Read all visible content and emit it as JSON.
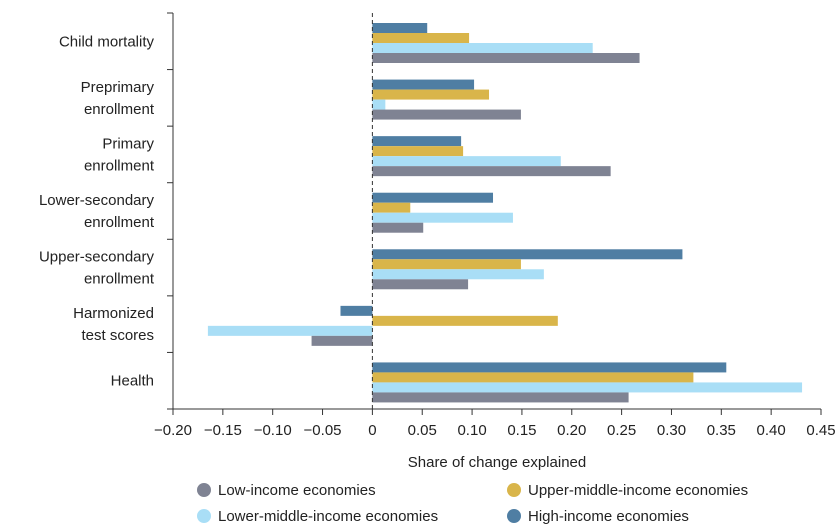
{
  "chart_data": {
    "type": "bar",
    "orientation": "horizontal",
    "categories": [
      [
        "Child mortality"
      ],
      [
        "Preprimary",
        "enrollment"
      ],
      [
        "Primary",
        "enrollment"
      ],
      [
        "Lower-secondary",
        "enrollment"
      ],
      [
        "Upper-secondary",
        "enrollment"
      ],
      [
        "Harmonized",
        "test scores"
      ],
      [
        "Health"
      ]
    ],
    "series": [
      {
        "name": "High-income economies",
        "color": "#4f7ea3",
        "values": [
          0.055,
          0.102,
          0.089,
          0.121,
          0.311,
          -0.032,
          0.355
        ]
      },
      {
        "name": "Upper-middle-income economies",
        "color": "#d9b54a",
        "values": [
          0.097,
          0.117,
          0.091,
          0.038,
          0.149,
          0.186,
          0.322
        ]
      },
      {
        "name": "Lower-middle-income economies",
        "color": "#a9def6",
        "values": [
          0.221,
          0.013,
          0.189,
          0.141,
          0.172,
          -0.165,
          0.431
        ]
      },
      {
        "name": "Low-income economies",
        "color": "#7f8393",
        "values": [
          0.268,
          0.149,
          0.239,
          0.051,
          0.096,
          -0.061,
          0.257
        ]
      }
    ],
    "xlim": [
      -0.2,
      0.45
    ],
    "xticks": [
      "−0.20",
      "−0.15",
      "−0.10",
      "−0.05",
      "0",
      "0.05",
      "0.10",
      "0.15",
      "0.20",
      "0.25",
      "0.30",
      "0.35",
      "0.40",
      "0.45"
    ],
    "xlabel": "Share of change explained",
    "title": "",
    "grid": false,
    "legend": {
      "placement": "bottom",
      "entries": [
        {
          "name": "Low-income economies",
          "color": "#7f8393"
        },
        {
          "name": "Upper-middle-income economies",
          "color": "#d9b54a"
        },
        {
          "name": "Lower-middle-income economies",
          "color": "#a9def6"
        },
        {
          "name": "High-income economies",
          "color": "#4f7ea3"
        }
      ]
    }
  }
}
